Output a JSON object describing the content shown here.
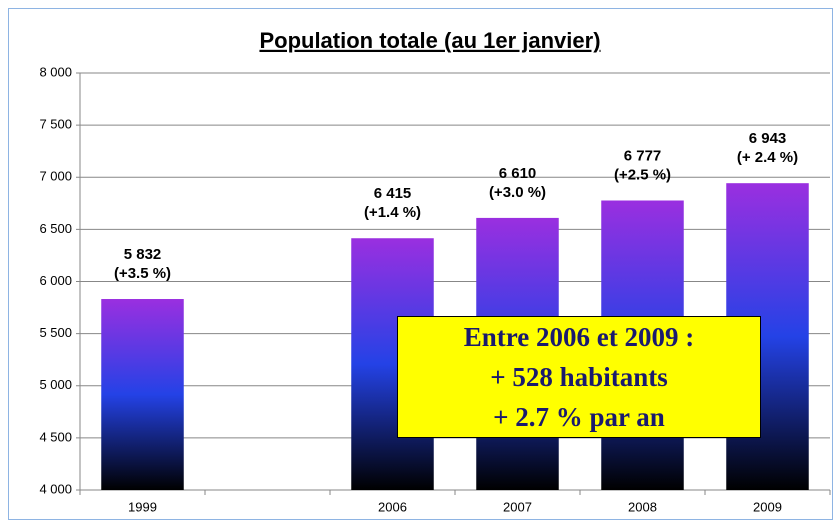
{
  "chart_data": {
    "type": "bar",
    "title": "Population totale (au 1er janvier)",
    "categories": [
      "1999",
      null,
      "2006",
      "2007",
      "2008",
      "2009"
    ],
    "values": [
      5832,
      null,
      6415,
      6610,
      6777,
      6943
    ],
    "value_labels": [
      "5 832",
      null,
      "6 415",
      "6 610",
      "6 777",
      "6 943"
    ],
    "growth_labels": [
      "(+3.5 %)",
      null,
      "(+1.4 %)",
      "(+3.0 %)",
      "(+2.5 %)",
      "(+ 2.4 %)"
    ],
    "colors": [
      "#9a2fe0",
      "#2442e6",
      "#000000"
    ],
    "ylim": [
      4000,
      8000
    ],
    "yticks": [
      {
        "value": 4000,
        "label": "4 000"
      },
      {
        "value": 4500,
        "label": "4 500"
      },
      {
        "value": 5000,
        "label": "5 000"
      },
      {
        "value": 5500,
        "label": "5 500"
      },
      {
        "value": 6000,
        "label": "6 000"
      },
      {
        "value": 6500,
        "label": "6 500"
      },
      {
        "value": 7000,
        "label": "7 000"
      },
      {
        "value": 7500,
        "label": "7 500"
      },
      {
        "value": 8000,
        "label": "8 000"
      }
    ],
    "grid": true,
    "annotation": [
      "Entre 2006 et 2009 :",
      "+ 528 habitants",
      "+ 2.7 % par an"
    ]
  }
}
